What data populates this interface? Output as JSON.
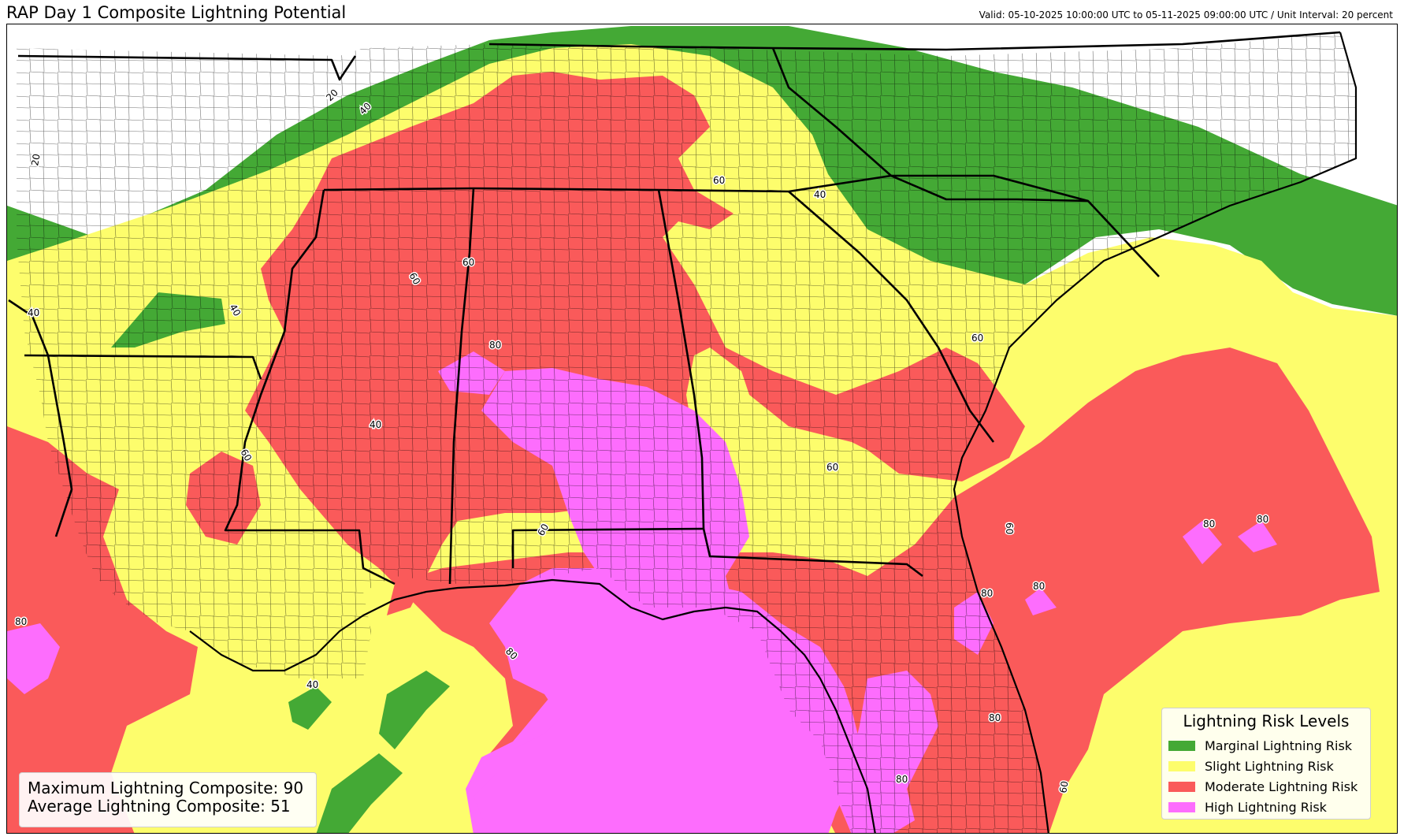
{
  "title": "RAP Day 1 Composite Lightning Potential",
  "valid_text": "Valid: 05-10-2025 10:00:00 UTC to 05-11-2025 09:00:00 UTC / Unit Interval: 20 percent",
  "stats": {
    "max_label": "Maximum Lightning Composite: 90",
    "avg_label": "Average Lightning Composite: 51"
  },
  "legend": {
    "title": "Lightning Risk Levels",
    "items": [
      {
        "label": "Marginal Lightning Risk",
        "color": "#44a935"
      },
      {
        "label": "Slight Lightning Risk",
        "color": "#fdfd6c"
      },
      {
        "label": "Moderate Lightning Risk",
        "color": "#fa5a5a"
      },
      {
        "label": "High Lightning Risk",
        "color": "#fd6dfd"
      }
    ]
  },
  "colors": {
    "none": "#ffffff",
    "marginal": "#44a935",
    "slight": "#fdfd6c",
    "moderate": "#fa5a5a",
    "high": "#fd6dfd",
    "county_lines": "#000000",
    "state_lines": "#000000"
  },
  "contour_labels": [
    "20",
    "40",
    "60",
    "80"
  ]
}
